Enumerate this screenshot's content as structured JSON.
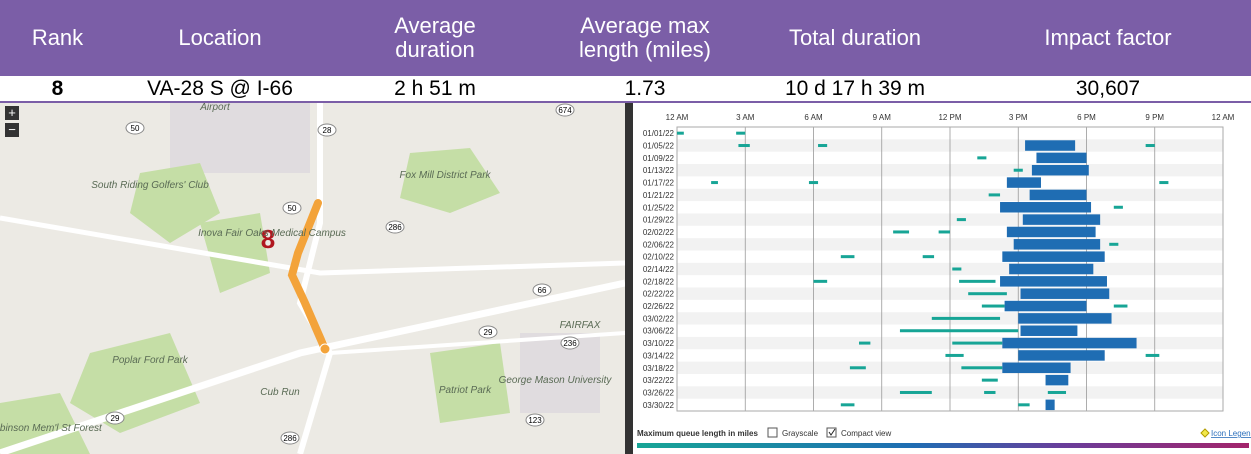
{
  "table": {
    "headers": [
      "Rank",
      "Location",
      "Average duration",
      "Average max length (miles)",
      "Total duration",
      "Impact factor"
    ],
    "row": [
      "8",
      "VA-28 S @ I-66",
      "2 h 51 m",
      "1.73",
      "10 d 17 h 39 m",
      "30,607"
    ]
  },
  "map": {
    "marker_label": "8",
    "labels": [
      "Airport",
      "Fox Mill District Park",
      "South Riding Golfers' Club",
      "Inova Fair Oaks Medical Campus",
      "FAIRFAX",
      "Poplar Ford Park",
      "Cub Run",
      "Patriot Park",
      "George Mason University",
      "Conway Robinson Mem'l St Forest"
    ],
    "shields": [
      "50",
      "28",
      "674",
      "286",
      "50",
      "66",
      "29",
      "236",
      "123",
      "29",
      "286"
    ],
    "zoom_in": "+",
    "zoom_out": "−"
  },
  "chart_data": {
    "type": "timeline",
    "xlim": [
      0,
      24
    ],
    "xticks": [
      {
        "value": 0,
        "label": "12 AM"
      },
      {
        "value": 3,
        "label": "3 AM"
      },
      {
        "value": 6,
        "label": "6 AM"
      },
      {
        "value": 9,
        "label": "9 AM"
      },
      {
        "value": 12,
        "label": "12 PM"
      },
      {
        "value": 15,
        "label": "3 PM"
      },
      {
        "value": 18,
        "label": "6 PM"
      },
      {
        "value": 21,
        "label": "9 PM"
      },
      {
        "value": 24,
        "label": "12 AM"
      }
    ],
    "colors": {
      "long": "#1f6db3",
      "short": "#17a596"
    },
    "rows": [
      {
        "date": "01/01/22",
        "long": [],
        "short": [
          [
            0,
            0.3
          ],
          [
            2.6,
            3.0
          ]
        ]
      },
      {
        "date": "01/05/22",
        "long": [
          [
            15.3,
            17.5
          ]
        ],
        "short": [
          [
            2.7,
            3.2
          ],
          [
            6.2,
            6.6
          ],
          [
            20.6,
            21.0
          ]
        ]
      },
      {
        "date": "01/09/22",
        "long": [
          [
            15.8,
            18.0
          ]
        ],
        "short": [
          [
            13.2,
            13.6
          ]
        ]
      },
      {
        "date": "01/13/22",
        "long": [
          [
            15.6,
            18.1
          ]
        ],
        "short": [
          [
            14.8,
            15.2
          ]
        ]
      },
      {
        "date": "01/17/22",
        "long": [
          [
            14.5,
            16.0
          ]
        ],
        "short": [
          [
            1.5,
            1.8
          ],
          [
            5.8,
            6.2
          ],
          [
            21.2,
            21.6
          ]
        ]
      },
      {
        "date": "01/21/22",
        "long": [
          [
            15.5,
            18.0
          ]
        ],
        "short": [
          [
            13.7,
            14.2
          ]
        ]
      },
      {
        "date": "01/25/22",
        "long": [
          [
            14.2,
            18.2
          ]
        ],
        "short": [
          [
            19.2,
            19.6
          ]
        ]
      },
      {
        "date": "01/29/22",
        "long": [
          [
            15.2,
            18.6
          ]
        ],
        "short": [
          [
            12.3,
            12.7
          ]
        ]
      },
      {
        "date": "02/02/22",
        "long": [
          [
            14.5,
            18.4
          ]
        ],
        "short": [
          [
            9.5,
            10.2
          ],
          [
            11.5,
            12
          ]
        ]
      },
      {
        "date": "02/06/22",
        "long": [
          [
            14.8,
            18.6
          ]
        ],
        "short": [
          [
            19,
            19.4
          ]
        ]
      },
      {
        "date": "02/10/22",
        "long": [
          [
            14.3,
            18.8
          ]
        ],
        "short": [
          [
            7.2,
            7.8
          ],
          [
            10.8,
            11.3
          ]
        ]
      },
      {
        "date": "02/14/22",
        "long": [
          [
            14.6,
            18.3
          ]
        ],
        "short": [
          [
            12.1,
            12.5
          ]
        ]
      },
      {
        "date": "02/18/22",
        "long": [
          [
            14.2,
            18.9
          ]
        ],
        "short": [
          [
            6.0,
            6.6
          ],
          [
            12.4,
            14
          ]
        ]
      },
      {
        "date": "02/22/22",
        "long": [
          [
            15.1,
            19.0
          ]
        ],
        "short": [
          [
            12.8,
            14.5
          ]
        ]
      },
      {
        "date": "02/26/22",
        "long": [
          [
            14.4,
            18.0
          ]
        ],
        "short": [
          [
            13.4,
            14.4
          ],
          [
            19.2,
            19.8
          ]
        ]
      },
      {
        "date": "03/02/22",
        "long": [
          [
            15.0,
            19.1
          ]
        ],
        "short": [
          [
            11.2,
            14.2
          ]
        ]
      },
      {
        "date": "03/06/22",
        "long": [
          [
            15.1,
            17.6
          ]
        ],
        "short": [
          [
            9.8,
            15
          ]
        ]
      },
      {
        "date": "03/10/22",
        "long": [
          [
            14.3,
            20.2
          ]
        ],
        "short": [
          [
            8.0,
            8.5
          ],
          [
            12.1,
            14.3
          ]
        ]
      },
      {
        "date": "03/14/22",
        "long": [
          [
            15.0,
            18.8
          ]
        ],
        "short": [
          [
            11.8,
            12.6
          ],
          [
            20.6,
            21.2
          ]
        ]
      },
      {
        "date": "03/18/22",
        "long": [
          [
            14.3,
            17.3
          ]
        ],
        "short": [
          [
            7.6,
            8.3
          ],
          [
            12.5,
            14.3
          ]
        ]
      },
      {
        "date": "03/22/22",
        "long": [
          [
            16.2,
            17.2
          ]
        ],
        "short": [
          [
            13.4,
            14.1
          ]
        ]
      },
      {
        "date": "03/26/22",
        "long": [],
        "short": [
          [
            9.8,
            11.2
          ],
          [
            13.5,
            14.0
          ],
          [
            16.3,
            17.1
          ]
        ]
      },
      {
        "date": "03/30/22",
        "long": [
          [
            16.2,
            16.6
          ]
        ],
        "short": [
          [
            7.2,
            7.8
          ],
          [
            15,
            15.5
          ]
        ]
      }
    ],
    "legend_title": "Maximum queue length in miles",
    "grayscale": "Grayscale",
    "compact_view": "Compact view",
    "icon_legend": "Icon Legend"
  }
}
